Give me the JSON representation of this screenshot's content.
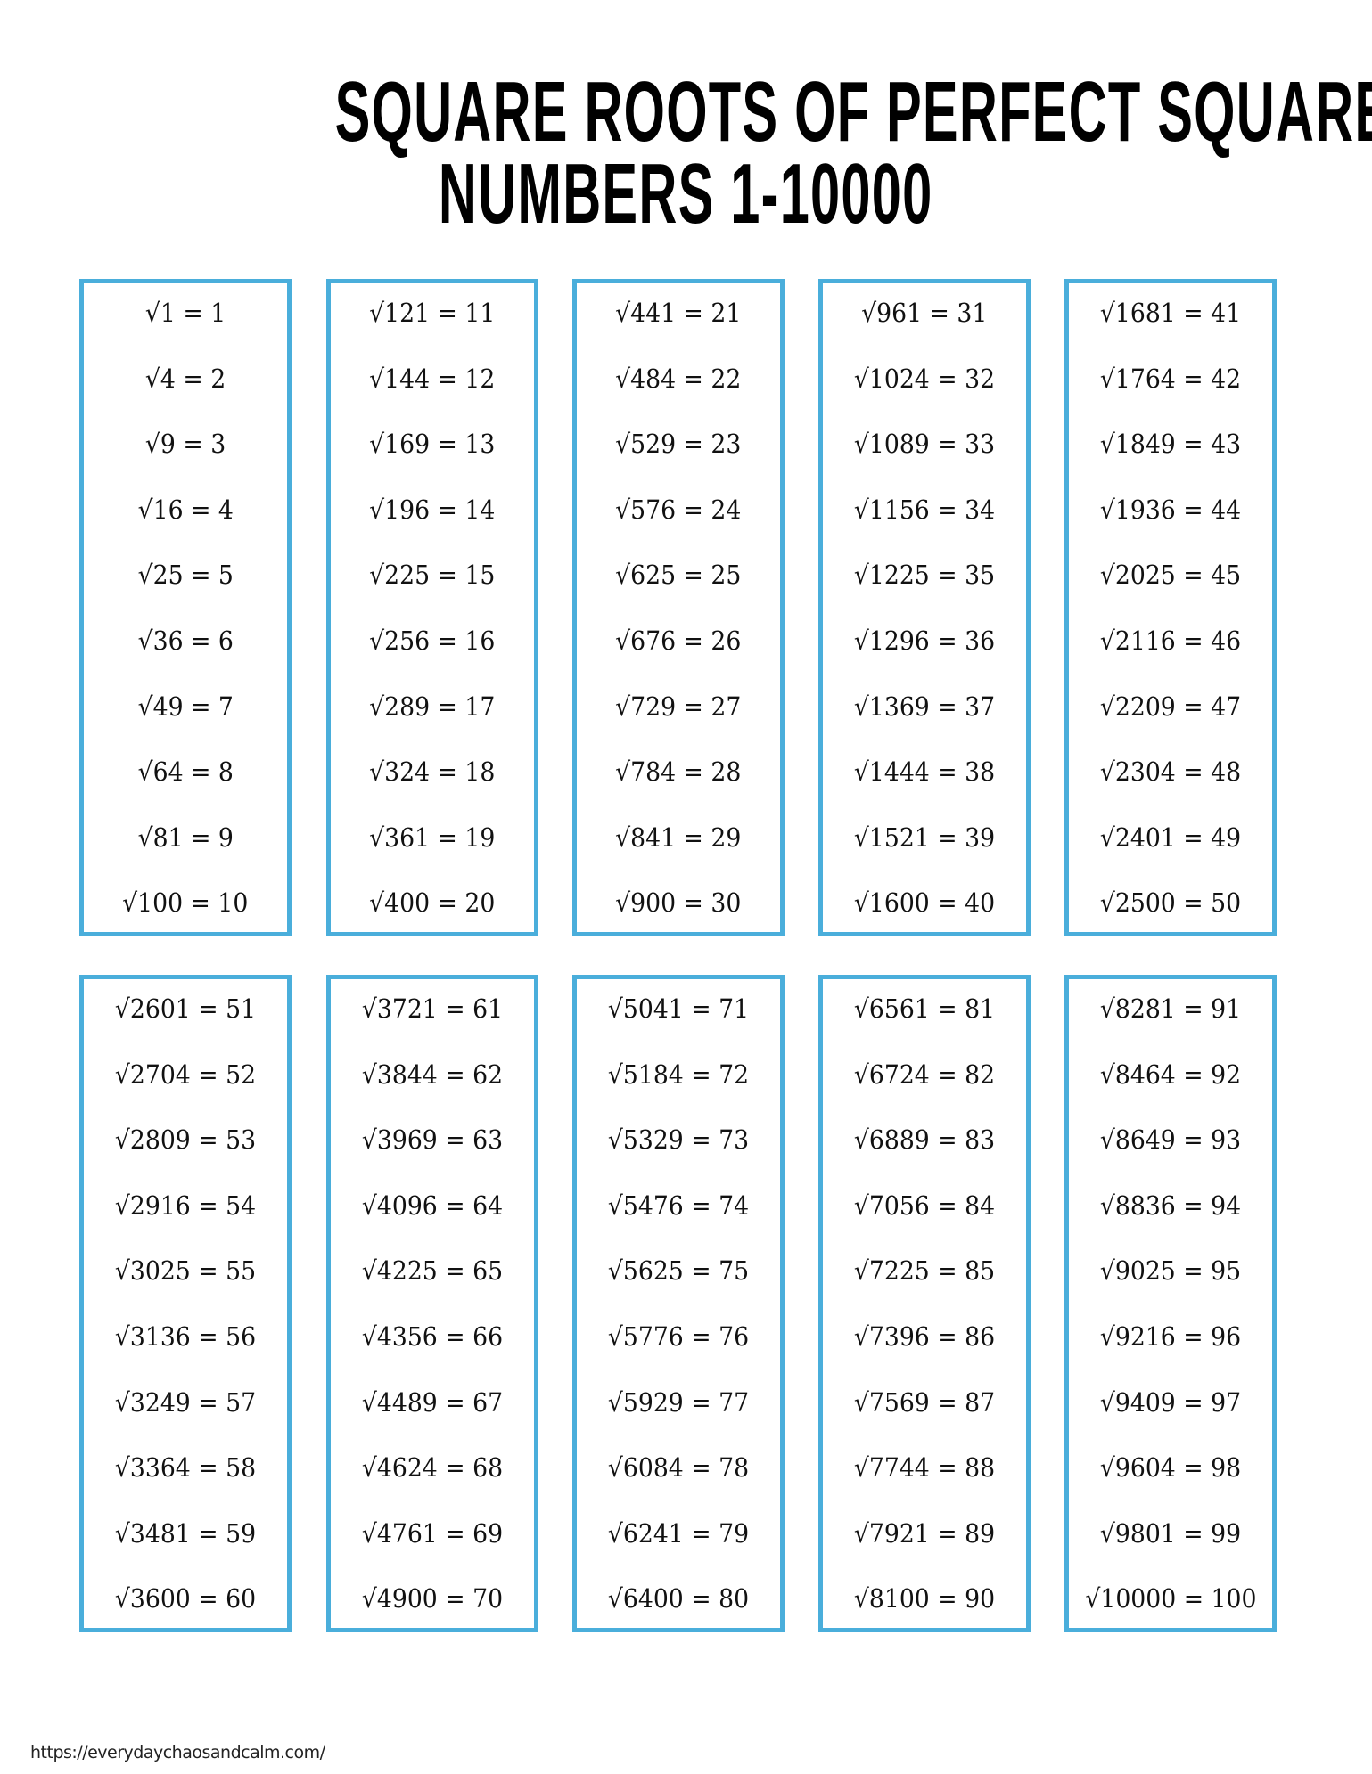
{
  "title": {
    "line1": "SQUARE ROOTS OF PERFECT SQUARES",
    "line2": "NUMBERS 1-10000"
  },
  "border_color": "#4aaedb",
  "groups": [
    [
      "√1 = 1",
      "√4 = 2",
      "√9 = 3",
      "√16 = 4",
      "√25 = 5",
      "√36 = 6",
      "√49 = 7",
      "√64 = 8",
      "√81 = 9",
      "√100 = 10"
    ],
    [
      "√121 = 11",
      "√144 = 12",
      "√169 = 13",
      "√196 = 14",
      "√225 = 15",
      "√256 = 16",
      "√289 = 17",
      "√324 = 18",
      "√361 = 19",
      "√400 = 20"
    ],
    [
      "√441 = 21",
      "√484 = 22",
      "√529 = 23",
      "√576 = 24",
      "√625 = 25",
      "√676 = 26",
      "√729 = 27",
      "√784 = 28",
      "√841 = 29",
      "√900 = 30"
    ],
    [
      "√961 = 31",
      "√1024 = 32",
      "√1089 = 33",
      "√1156 = 34",
      "√1225 = 35",
      "√1296 = 36",
      "√1369 = 37",
      "√1444 = 38",
      "√1521 = 39",
      "√1600 = 40"
    ],
    [
      "√1681 = 41",
      "√1764 = 42",
      "√1849 = 43",
      "√1936 = 44",
      "√2025 = 45",
      "√2116 = 46",
      "√2209 = 47",
      "√2304 = 48",
      "√2401 = 49",
      "√2500 = 50"
    ],
    [
      "√2601 = 51",
      "√2704 = 52",
      "√2809 = 53",
      "√2916 = 54",
      "√3025 = 55",
      "√3136 = 56",
      "√3249 = 57",
      "√3364 = 58",
      "√3481 = 59",
      "√3600 = 60"
    ],
    [
      "√3721 = 61",
      "√3844 = 62",
      "√3969 = 63",
      "√4096 = 64",
      "√4225 = 65",
      "√4356 = 66",
      "√4489 = 67",
      "√4624 = 68",
      "√4761 = 69",
      "√4900 = 70"
    ],
    [
      "√5041 = 71",
      "√5184 = 72",
      "√5329 = 73",
      "√5476 = 74",
      "√5625 = 75",
      "√5776 = 76",
      "√5929 = 77",
      "√6084 = 78",
      "√6241 = 79",
      "√6400 = 80"
    ],
    [
      "√6561 = 81",
      "√6724 = 82",
      "√6889 = 83",
      "√7056 = 84",
      "√7225 = 85",
      "√7396 = 86",
      "√7569 = 87",
      "√7744 = 88",
      "√7921 = 89",
      "√8100 = 90"
    ],
    [
      "√8281 = 91",
      "√8464 = 92",
      "√8649 = 93",
      "√8836 = 94",
      "√9025 = 95",
      "√9216 = 96",
      "√9409 = 97",
      "√9604 = 98",
      "√9801 = 99",
      "√10000 = 100"
    ]
  ],
  "footer": "https://everydaychaosandcalm.com/"
}
